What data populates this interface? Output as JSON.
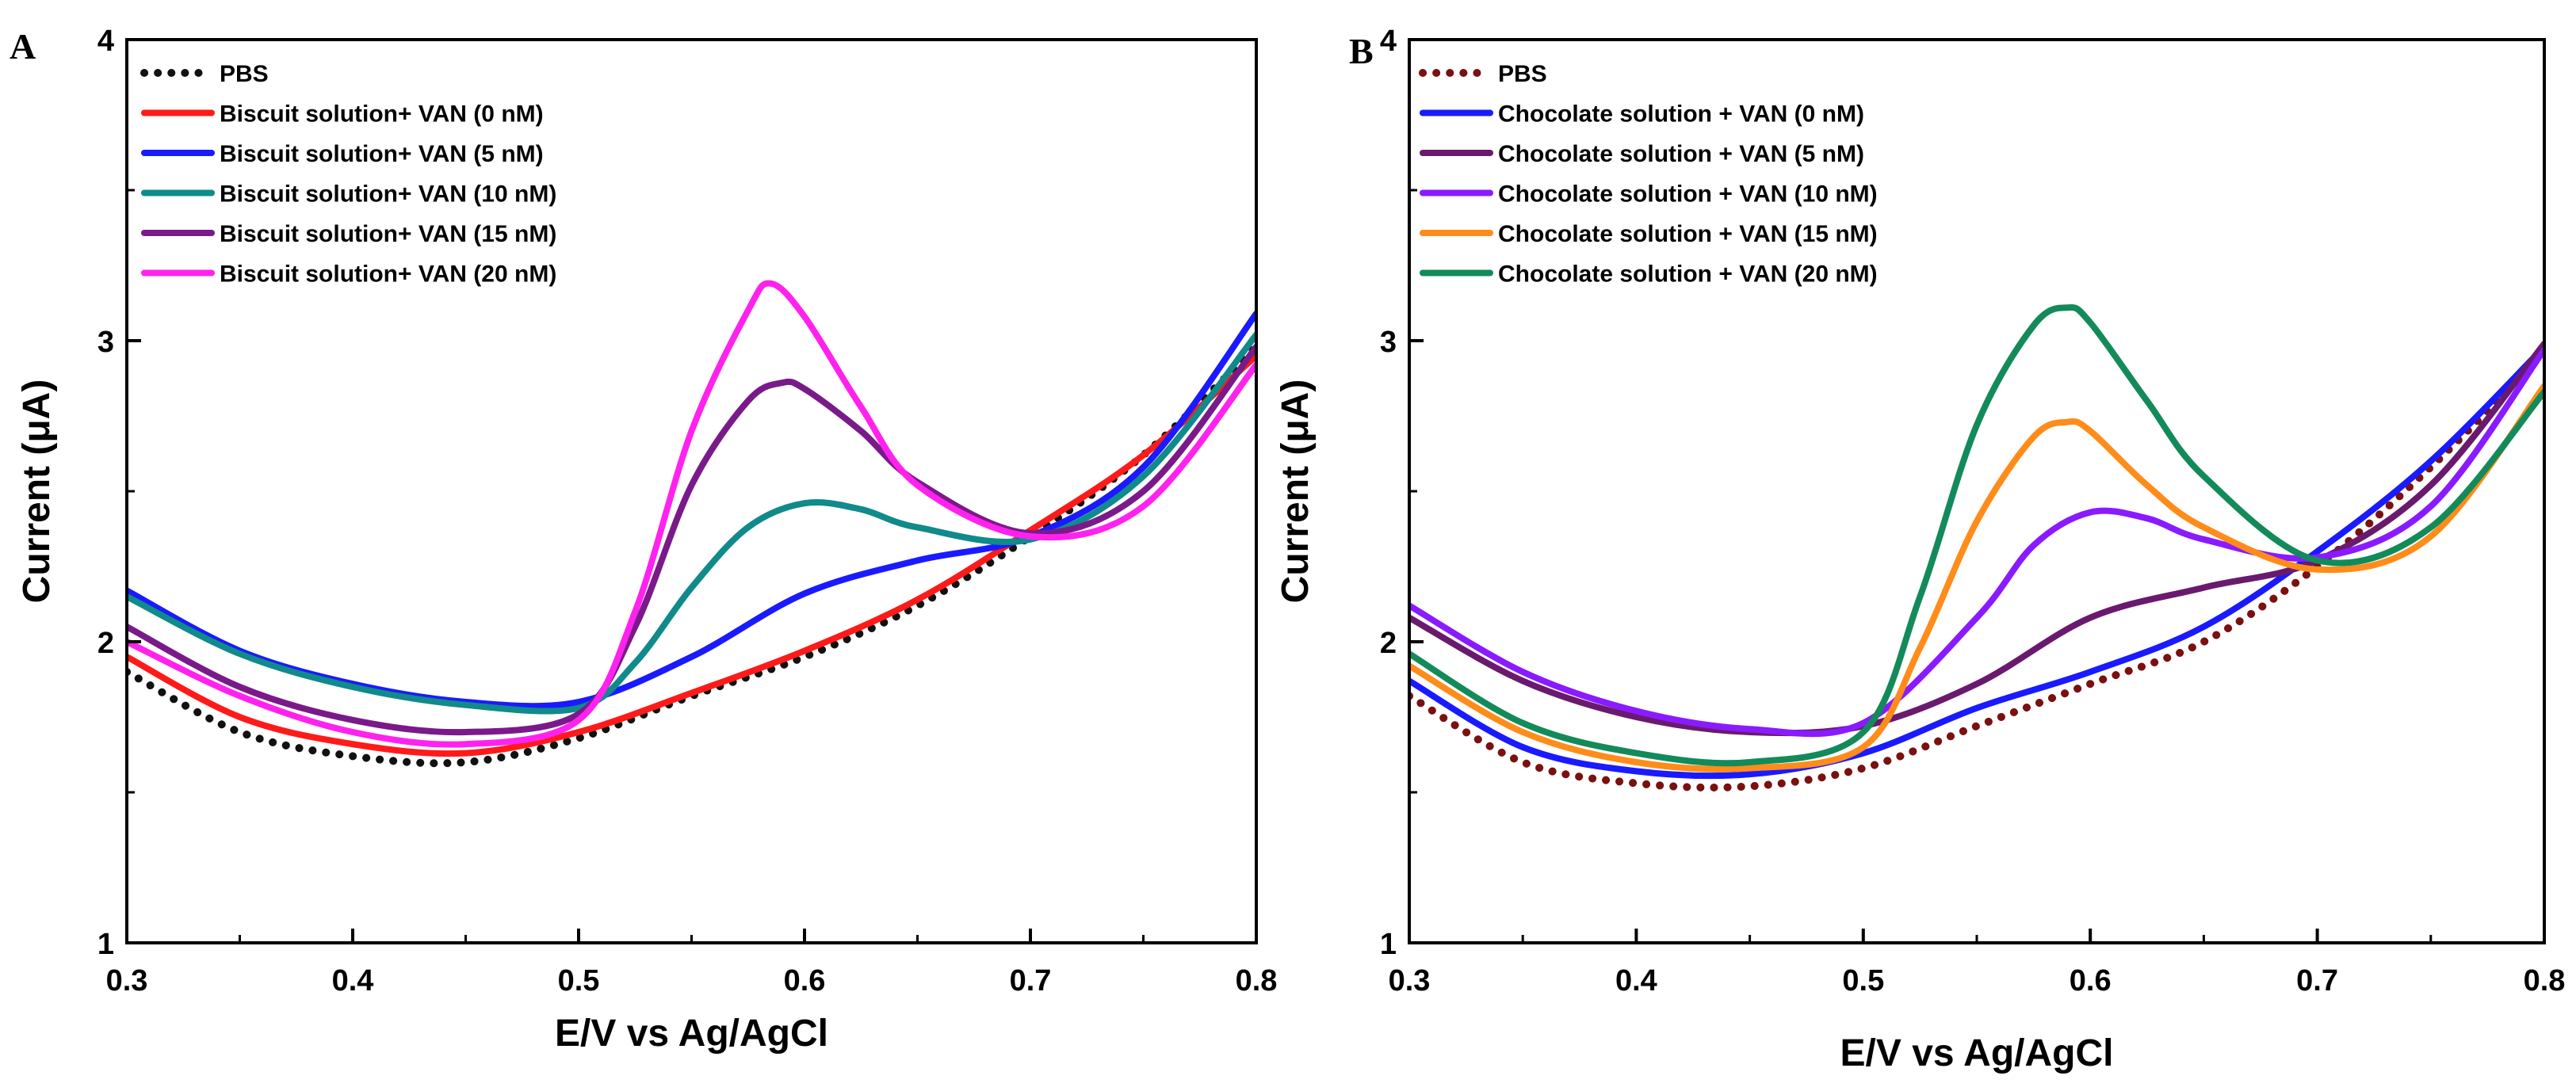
{
  "chart_data": [
    {
      "type": "line",
      "panel_label": "A",
      "xlabel": "E/V vs Ag/AgCl",
      "ylabel": "Current (μA)",
      "xlim": [
        0.3,
        0.8
      ],
      "ylim": [
        1,
        4
      ],
      "x_ticks": [
        "0.3",
        "0.4",
        "0.5",
        "0.6",
        "0.7",
        "0.8"
      ],
      "y_ticks": [
        "1",
        "2",
        "3",
        "4"
      ],
      "legend_position": "top-left",
      "series": [
        {
          "name": "PBS",
          "color": "#111111",
          "style": "dotted",
          "x": [
            0.3,
            0.35,
            0.4,
            0.45,
            0.5,
            0.55,
            0.6,
            0.65,
            0.7,
            0.75,
            0.8
          ],
          "y": [
            1.9,
            1.7,
            1.62,
            1.6,
            1.68,
            1.82,
            1.95,
            2.12,
            2.35,
            2.62,
            2.98
          ]
        },
        {
          "name": "Biscuit solution+ VAN (0 nM)",
          "color": "#ff1a1a",
          "style": "solid",
          "x": [
            0.3,
            0.35,
            0.4,
            0.45,
            0.5,
            0.55,
            0.6,
            0.65,
            0.7,
            0.75,
            0.8
          ],
          "y": [
            1.95,
            1.75,
            1.66,
            1.63,
            1.7,
            1.83,
            1.97,
            2.14,
            2.37,
            2.62,
            2.95
          ]
        },
        {
          "name": "Biscuit solution+ VAN (5 nM)",
          "color": "#1a1aff",
          "style": "solid",
          "x": [
            0.3,
            0.35,
            0.4,
            0.45,
            0.5,
            0.55,
            0.6,
            0.65,
            0.7,
            0.75,
            0.8
          ],
          "y": [
            2.17,
            1.97,
            1.86,
            1.8,
            1.8,
            1.95,
            2.16,
            2.27,
            2.35,
            2.58,
            3.09
          ]
        },
        {
          "name": "Biscuit solution+ VAN (10 nM)",
          "color": "#108a8a",
          "style": "solid",
          "x": [
            0.3,
            0.35,
            0.4,
            0.45,
            0.5,
            0.525,
            0.55,
            0.575,
            0.6,
            0.625,
            0.65,
            0.7,
            0.75,
            0.8
          ],
          "y": [
            2.15,
            1.96,
            1.85,
            1.79,
            1.78,
            1.93,
            2.18,
            2.38,
            2.46,
            2.44,
            2.38,
            2.34,
            2.55,
            3.02
          ]
        },
        {
          "name": "Biscuit solution+ VAN (15 nM)",
          "color": "#7a1a8a",
          "style": "solid",
          "x": [
            0.3,
            0.35,
            0.4,
            0.45,
            0.5,
            0.525,
            0.55,
            0.575,
            0.59,
            0.6,
            0.625,
            0.65,
            0.7,
            0.75,
            0.8
          ],
          "y": [
            2.05,
            1.85,
            1.74,
            1.7,
            1.76,
            2.05,
            2.52,
            2.8,
            2.86,
            2.84,
            2.7,
            2.53,
            2.36,
            2.5,
            2.98
          ]
        },
        {
          "name": "Biscuit solution+ VAN (20 nM)",
          "color": "#ff22ee",
          "style": "solid",
          "x": [
            0.3,
            0.35,
            0.4,
            0.45,
            0.5,
            0.525,
            0.55,
            0.575,
            0.585,
            0.6,
            0.625,
            0.65,
            0.7,
            0.75,
            0.8
          ],
          "y": [
            2.0,
            1.82,
            1.7,
            1.66,
            1.74,
            2.1,
            2.7,
            3.1,
            3.19,
            3.08,
            2.78,
            2.52,
            2.35,
            2.45,
            2.92
          ]
        }
      ]
    },
    {
      "type": "line",
      "panel_label": "B",
      "xlabel": "E/V vs Ag/AgCl",
      "ylabel": "Current (μA)",
      "xlim": [
        0.3,
        0.8
      ],
      "ylim": [
        1,
        4
      ],
      "x_ticks": [
        "0.3",
        "0.4",
        "0.5",
        "0.6",
        "0.7",
        "0.8"
      ],
      "y_ticks": [
        "1",
        "2",
        "3",
        "4"
      ],
      "legend_position": "top-left",
      "series": [
        {
          "name": "PBS",
          "color": "#7a1010",
          "style": "dotted",
          "x": [
            0.3,
            0.35,
            0.4,
            0.45,
            0.5,
            0.55,
            0.6,
            0.65,
            0.7,
            0.75,
            0.8
          ],
          "y": [
            1.82,
            1.6,
            1.53,
            1.52,
            1.58,
            1.72,
            1.86,
            2.0,
            2.25,
            2.58,
            2.96
          ]
        },
        {
          "name": "Chocolate solution + VAN (0 nM)",
          "color": "#1a1aff",
          "style": "solid",
          "x": [
            0.3,
            0.35,
            0.4,
            0.45,
            0.5,
            0.55,
            0.6,
            0.65,
            0.7,
            0.75,
            0.8
          ],
          "y": [
            1.87,
            1.65,
            1.57,
            1.56,
            1.63,
            1.78,
            1.9,
            2.05,
            2.3,
            2.6,
            2.98
          ]
        },
        {
          "name": "Chocolate solution + VAN (5 nM)",
          "color": "#6a1a6e",
          "style": "solid",
          "x": [
            0.3,
            0.35,
            0.4,
            0.45,
            0.5,
            0.55,
            0.6,
            0.65,
            0.7,
            0.75,
            0.8
          ],
          "y": [
            2.08,
            1.87,
            1.75,
            1.7,
            1.72,
            1.86,
            2.08,
            2.18,
            2.27,
            2.52,
            2.99
          ]
        },
        {
          "name": "Chocolate solution + VAN (10 nM)",
          "color": "#8a1aff",
          "style": "solid",
          "x": [
            0.3,
            0.35,
            0.4,
            0.45,
            0.5,
            0.55,
            0.575,
            0.6,
            0.625,
            0.65,
            0.7,
            0.75,
            0.8
          ],
          "y": [
            2.12,
            1.9,
            1.77,
            1.71,
            1.73,
            2.08,
            2.32,
            2.43,
            2.41,
            2.34,
            2.28,
            2.45,
            2.97
          ]
        },
        {
          "name": "Chocolate solution + VAN (15 nM)",
          "color": "#ff8c1a",
          "style": "solid",
          "x": [
            0.3,
            0.35,
            0.4,
            0.45,
            0.5,
            0.525,
            0.55,
            0.575,
            0.59,
            0.6,
            0.625,
            0.65,
            0.7,
            0.75,
            0.8
          ],
          "y": [
            1.92,
            1.7,
            1.6,
            1.58,
            1.65,
            1.98,
            2.4,
            2.68,
            2.73,
            2.7,
            2.52,
            2.38,
            2.24,
            2.35,
            2.85
          ]
        },
        {
          "name": "Chocolate solution + VAN (20 nM)",
          "color": "#138a5a",
          "style": "solid",
          "x": [
            0.3,
            0.35,
            0.4,
            0.45,
            0.5,
            0.525,
            0.55,
            0.575,
            0.59,
            0.6,
            0.625,
            0.65,
            0.7,
            0.75,
            0.8
          ],
          "y": [
            1.96,
            1.73,
            1.63,
            1.6,
            1.7,
            2.15,
            2.72,
            3.05,
            3.11,
            3.06,
            2.8,
            2.55,
            2.27,
            2.38,
            2.83
          ]
        }
      ]
    }
  ]
}
